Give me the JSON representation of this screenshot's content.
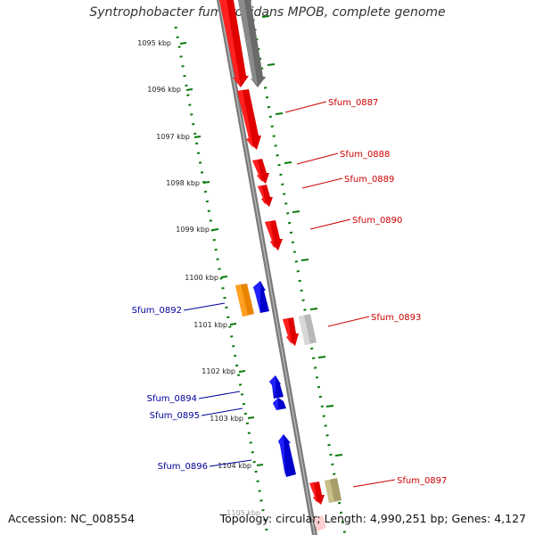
{
  "title": "Syntrophobacter fumaroxidans MPOB, complete genome",
  "footer": {
    "accession": "Accession: NC_008554",
    "summary": "Topology: circular; Length: 4,990,251 bp; Genes: 4,127"
  },
  "colors": {
    "forward_label": "#cc0000",
    "reverse_label": "#000099",
    "tick": "#007700",
    "backbone": "#777777"
  },
  "scale_labels": [
    "1095 kbp",
    "1096 kbp",
    "1097 kbp",
    "1098 kbp",
    "1099 kbp",
    "1100 kbp",
    "1101 kbp",
    "1102 kbp",
    "1103 kbp",
    "1104 kbp"
  ],
  "partial_scale_label": "1105 kbp",
  "gene_labels": {
    "forward": [
      "Sfum_0887",
      "Sfum_0888",
      "Sfum_0889",
      "Sfum_0890",
      "Sfum_0893",
      "Sfum_0897"
    ],
    "reverse": [
      "Sfum_0892",
      "Sfum_0894",
      "Sfum_0895",
      "Sfum_0896"
    ]
  }
}
